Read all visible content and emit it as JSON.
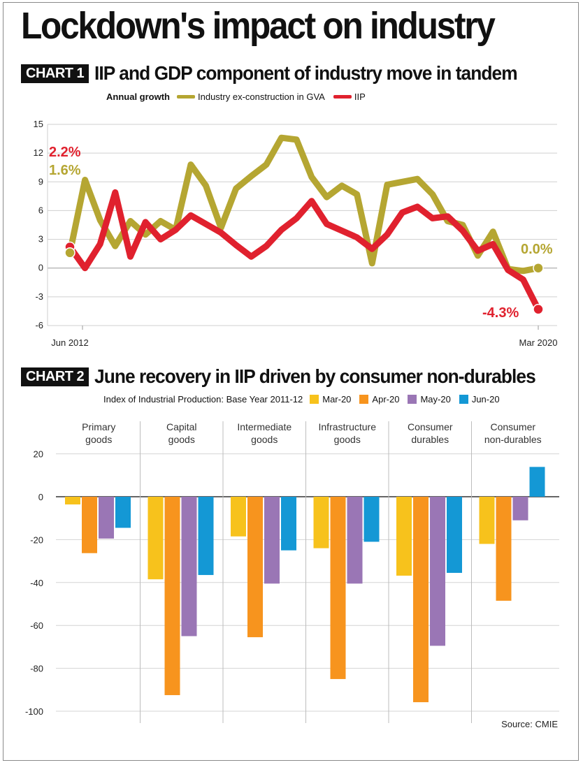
{
  "title": "Lockdown's impact on industry",
  "charts_meta": [
    {
      "tag": "CHART 1",
      "title": "IIP and GDP component of industry move in tandem",
      "legend_lead": "Annual growth"
    },
    {
      "tag": "CHART 2",
      "title": "June recovery in IIP driven by consumer non-durables",
      "legend_lead": "Index of Industrial Production: Base Year 2011-12"
    }
  ],
  "source": "Source: CMIE",
  "colors": {
    "gva": "#b5a632",
    "iip": "#e0212e",
    "mar20": "#f7c21c",
    "apr20": "#f7941e",
    "may20": "#9a76b5",
    "jun20": "#1498d5"
  },
  "chart_data": [
    {
      "type": "line",
      "title": "IIP and GDP component of industry move in tandem",
      "ylabel": "Annual growth",
      "ylim": [
        -6,
        15
      ],
      "yticks": [
        15,
        12,
        9,
        6,
        3,
        0,
        -3,
        -6
      ],
      "x": [
        "Jun 2012",
        "Sep 2012",
        "Dec 2012",
        "Mar 2013",
        "Jun 2013",
        "Sep 2013",
        "Dec 2013",
        "Mar 2014",
        "Jun 2014",
        "Sep 2014",
        "Dec 2014",
        "Mar 2015",
        "Jun 2015",
        "Sep 2015",
        "Dec 2015",
        "Mar 2016",
        "Jun 2016",
        "Sep 2016",
        "Dec 2016",
        "Mar 2017",
        "Jun 2017",
        "Sep 2017",
        "Dec 2017",
        "Mar 2018",
        "Jun 2018",
        "Sep 2018",
        "Dec 2018",
        "Mar 2019",
        "Jun 2019",
        "Sep 2019",
        "Dec 2019",
        "Mar 2020"
      ],
      "x_tick_labels": [
        "Jun 2012",
        "Mar 2020"
      ],
      "series": [
        {
          "name": "Industry ex-construction in GVA",
          "values": [
            1.6,
            9.2,
            5.0,
            2.3,
            4.9,
            3.5,
            4.9,
            4.0,
            10.8,
            8.6,
            4.2,
            8.3,
            9.6,
            10.8,
            13.6,
            13.4,
            9.5,
            7.4,
            8.6,
            7.7,
            0.5,
            8.7,
            9.0,
            9.3,
            7.7,
            4.9,
            4.5,
            1.3,
            3.8,
            -0.1,
            -0.3,
            0.0
          ]
        },
        {
          "name": "IIP",
          "values": [
            2.2,
            0.0,
            2.5,
            7.9,
            1.2,
            4.8,
            3.0,
            4.0,
            5.5,
            4.6,
            3.7,
            2.4,
            1.2,
            2.3,
            4.0,
            5.2,
            7.0,
            4.6,
            3.9,
            3.2,
            2.0,
            3.5,
            5.8,
            6.4,
            5.2,
            5.4,
            3.9,
            1.8,
            2.5,
            -0.2,
            -1.2,
            -4.3
          ]
        }
      ],
      "annotations": [
        {
          "text": "2.2%",
          "series": "IIP",
          "index": 0
        },
        {
          "text": "1.6%",
          "series": "Industry ex-construction in GVA",
          "index": 0
        },
        {
          "text": "0.0%",
          "series": "Industry ex-construction in GVA",
          "index": 31
        },
        {
          "text": "-4.3%",
          "series": "IIP",
          "index": 31
        }
      ],
      "grid": true,
      "legend": "top"
    },
    {
      "type": "bar",
      "title": "June recovery in IIP driven by consumer non-durables",
      "subtitle": "Index of Industrial Production: Base Year 2011-12",
      "categories": [
        "Primary goods",
        "Capital goods",
        "Intermediate goods",
        "Infrastructure goods",
        "Consumer durables",
        "Consumer non-durables"
      ],
      "category_lines": [
        [
          "Primary",
          "goods"
        ],
        [
          "Capital",
          "goods"
        ],
        [
          "Intermediate",
          "goods"
        ],
        [
          "Infrastructure",
          "goods"
        ],
        [
          "Consumer",
          "durables"
        ],
        [
          "Consumer",
          "non-durables"
        ]
      ],
      "ylim": [
        -100,
        20
      ],
      "yticks": [
        20,
        0,
        -20,
        -40,
        -60,
        -80,
        -100
      ],
      "series": [
        {
          "name": "Mar-20",
          "values": [
            -3.6,
            -38.5,
            -18.5,
            -24.0,
            -36.8,
            -22.0
          ]
        },
        {
          "name": "Apr-20",
          "values": [
            -26.3,
            -92.5,
            -65.5,
            -85.0,
            -95.8,
            -48.5
          ]
        },
        {
          "name": "May-20",
          "values": [
            -19.5,
            -65.0,
            -40.5,
            -40.5,
            -69.5,
            -11.0
          ]
        },
        {
          "name": "Jun-20",
          "values": [
            -14.5,
            -36.5,
            -25.0,
            -21.0,
            -35.5,
            13.9
          ]
        }
      ],
      "grid": true,
      "legend": "top-right"
    }
  ]
}
